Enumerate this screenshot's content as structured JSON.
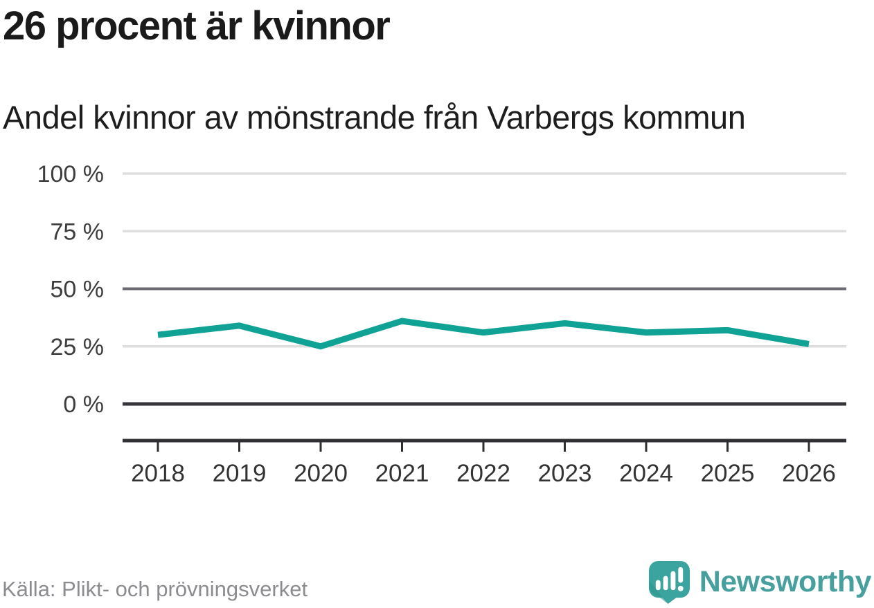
{
  "header": {
    "title": "26 procent är kvinnor",
    "subtitle": "Andel kvinnor av mönstrande från Varbergs kommun"
  },
  "chart_data": {
    "type": "line",
    "title": "26 procent är kvinnor",
    "subtitle": "Andel kvinnor av mönstrande från Varbergs kommun",
    "x": [
      2018,
      2019,
      2020,
      2021,
      2022,
      2023,
      2024,
      2025,
      2026
    ],
    "series": [
      {
        "name": "Andel kvinnor av mönstrande",
        "values": [
          30,
          34,
          25,
          36,
          31,
          35,
          31,
          32,
          26
        ]
      }
    ],
    "unit": "%",
    "ylim": [
      0,
      100
    ],
    "y_ticks": [
      {
        "value": 100,
        "label": "100 %",
        "emphasis": "light"
      },
      {
        "value": 75,
        "label": "75 %",
        "emphasis": "light"
      },
      {
        "value": 50,
        "label": "50 %",
        "emphasis": "mid"
      },
      {
        "value": 25,
        "label": "25 %",
        "emphasis": "light"
      },
      {
        "value": 0,
        "label": "0 %",
        "emphasis": "dark"
      }
    ],
    "grid": true,
    "legend_position": "none"
  },
  "footer": {
    "source": "Källa: Plikt- och prövningsverket",
    "brand": "Newsworthy"
  },
  "colors": {
    "line": "#10a294",
    "grid_light": "#dedede",
    "grid_mid": "#6b6b73",
    "grid_dark": "#36363a",
    "axis": "#2f2f33",
    "tick_text": "#3d3d3d",
    "brand_teal": "#47a09d",
    "logo_fill": "#3ba49e",
    "logo_shade": "#2f938e"
  }
}
